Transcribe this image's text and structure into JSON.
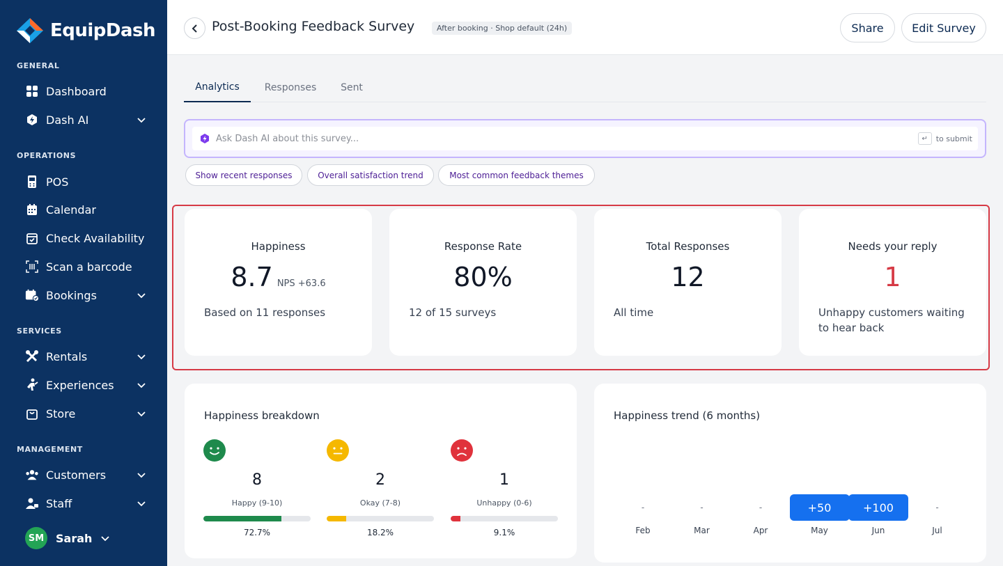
{
  "brand": {
    "name": "EquipDash"
  },
  "sidebar": {
    "sections": {
      "general": "GENERAL",
      "operations": "OPERATIONS",
      "services": "SERVICES",
      "management": "MANAGEMENT"
    },
    "items": {
      "dashboard": "Dashboard",
      "dash_ai": "Dash AI",
      "pos": "POS",
      "calendar": "Calendar",
      "check_availability": "Check Availability",
      "scan_barcode": "Scan a barcode",
      "bookings": "Bookings",
      "rentals": "Rentals",
      "experiences": "Experiences",
      "store": "Store",
      "customers": "Customers",
      "staff": "Staff"
    },
    "user": {
      "initials": "SM",
      "name": "Sarah"
    }
  },
  "header": {
    "title": "Post-Booking Feedback Survey",
    "badge": "After booking · Shop default (24h)",
    "share_label": "Share",
    "edit_label": "Edit Survey"
  },
  "tabs": {
    "analytics": "Analytics",
    "responses": "Responses",
    "sent": "Sent"
  },
  "ai": {
    "placeholder": "Ask Dash AI about this survey...",
    "enter_key": "↵",
    "submit_hint": "to submit",
    "chips": {
      "recent": "Show recent responses",
      "trend": "Overall satisfaction trend",
      "themes": "Most common feedback themes"
    }
  },
  "kpis": {
    "happiness": {
      "title": "Happiness",
      "value": "8.7",
      "nps": "NPS +63.6",
      "sub": "Based on 11 responses"
    },
    "response_rate": {
      "title": "Response Rate",
      "value": "80%",
      "sub": "12 of 15 surveys"
    },
    "total": {
      "title": "Total Responses",
      "value": "12",
      "sub": "All time"
    },
    "needs_reply": {
      "title": "Needs your reply",
      "value": "1",
      "sub": "Unhappy customers waiting to hear back"
    }
  },
  "breakdown": {
    "title": "Happiness breakdown",
    "happy": {
      "count": "8",
      "label": "Happy (9-10)",
      "pct": "72.7%",
      "fraction": 0.727
    },
    "okay": {
      "count": "2",
      "label": "Okay (7-8)",
      "pct": "18.2%",
      "fraction": 0.182
    },
    "unhappy": {
      "count": "1",
      "label": "Unhappy (0-6)",
      "pct": "9.1%",
      "fraction": 0.091
    }
  },
  "trend": {
    "title": "Happiness trend (6 months)",
    "months": [
      {
        "month": "Feb",
        "value": "-"
      },
      {
        "month": "Mar",
        "value": "-"
      },
      {
        "month": "Apr",
        "value": "-"
      },
      {
        "month": "May",
        "value": "+50"
      },
      {
        "month": "Jun",
        "value": "+100"
      },
      {
        "month": "Jul",
        "value": "-"
      }
    ]
  },
  "colors": {
    "sidebar": "#0c3262",
    "accent": "#1570ef",
    "happy": "#1e8a4c",
    "okay": "#f5b800",
    "unhappy": "#e0323c",
    "alert": "#d63a45"
  }
}
